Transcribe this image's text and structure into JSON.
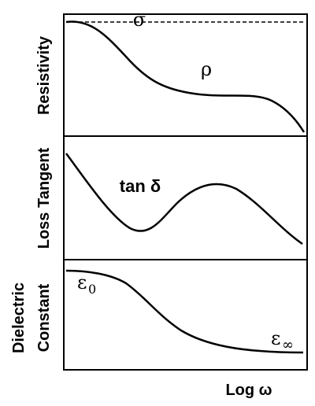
{
  "y_axis_labels": {
    "resistivity": "Resistivity",
    "loss_tangent": "Loss Tangent",
    "dielectric_line1": "Dielectric",
    "dielectric_line2": "Constant"
  },
  "x_axis_label": "Log ω",
  "curve_labels": {
    "sigma": "σ",
    "rho": "ρ",
    "tan_delta": "tan δ",
    "epsilon_0": "ε",
    "epsilon_0_sub": "0",
    "epsilon_inf": "ε",
    "epsilon_inf_sub": "∞"
  },
  "colors": {
    "ink": "#000000",
    "background": "#ffffff"
  }
}
